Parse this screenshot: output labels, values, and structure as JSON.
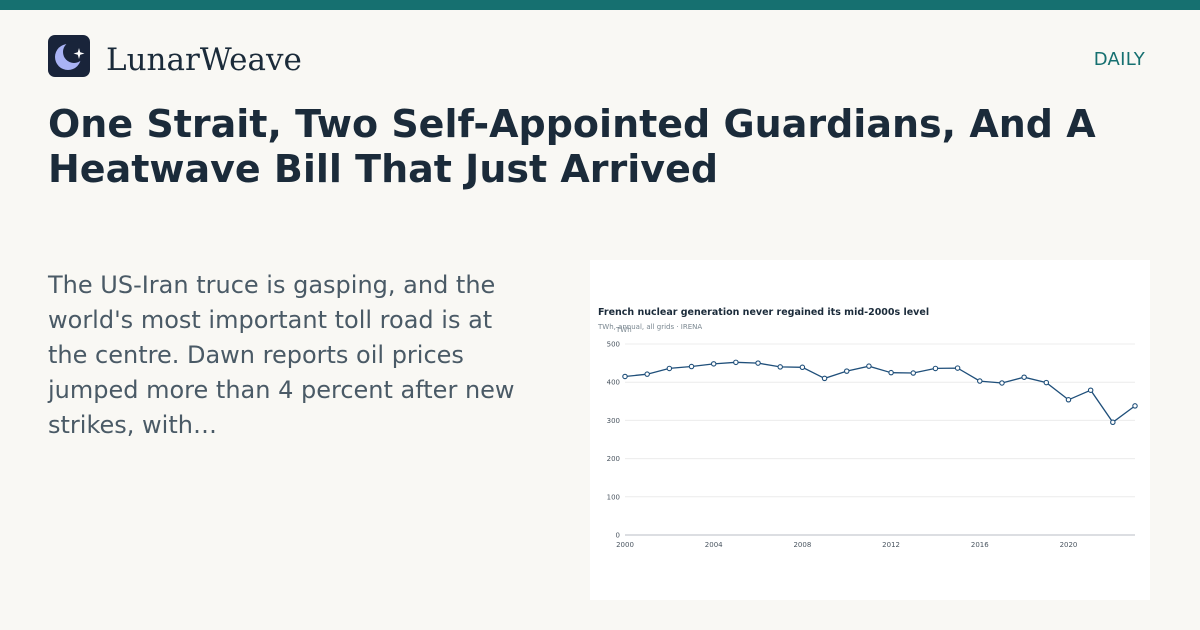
{
  "brand": {
    "name": "LunarWeave",
    "logo_icon": "moon-star-icon",
    "accent": "#167070"
  },
  "section_label": "DAILY",
  "headline": "One Strait, Two Self-Appointed Guardians, And A Heatwave Bill That Just Arrived",
  "excerpt": "The US-Iran truce is gasping, and the world's most important toll road is at the centre. Dawn reports oil prices jumped more than 4 percent after new strikes, with…",
  "chart_data": {
    "type": "line",
    "title": "French nuclear generation never regained its mid-2000s level",
    "subtitle": "TWh, annual, all grids · IRENA",
    "ylabel": "TWh",
    "xlim": [
      2000,
      2023
    ],
    "ylim": [
      0,
      500
    ],
    "yticks": [
      0,
      100,
      200,
      300,
      400,
      500
    ],
    "xticks": [
      2000,
      2004,
      2008,
      2012,
      2016,
      2020
    ],
    "grid": true,
    "line_color": "#1f4f7a",
    "series": [
      {
        "x": [
          2000,
          2001,
          2002,
          2003,
          2004,
          2005,
          2006,
          2007,
          2008,
          2009,
          2010,
          2011,
          2012,
          2013,
          2014,
          2015,
          2016,
          2017,
          2018,
          2019,
          2020,
          2021,
          2022,
          2023
        ],
        "values": [
          415,
          421,
          436,
          441,
          448,
          452,
          450,
          440,
          439,
          410,
          429,
          442,
          425,
          424,
          436,
          437,
          403,
          398,
          413,
          399,
          354,
          379,
          295,
          338
        ]
      }
    ]
  }
}
